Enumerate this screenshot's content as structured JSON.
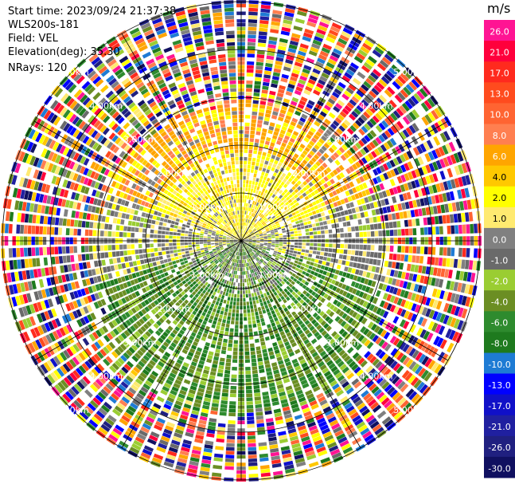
{
  "info": {
    "start_time": "Start time: 2023/09/24 21:37:38",
    "instrument": "WLS200s-181",
    "field": "Field: VEL",
    "elevation": "Elevation(deg): 35.30",
    "nrays": "NRays: 120"
  },
  "colorbar": {
    "unit": "m/s",
    "ticks": [
      "26.0",
      "21.0",
      "17.0",
      "13.0",
      "10.0",
      "8.0",
      "6.0",
      "4.0",
      "2.0",
      "1.0",
      "0.0",
      "-1.0",
      "-2.0",
      "-4.0",
      "-6.0",
      "-8.0",
      "-10.0",
      "-13.0",
      "-17.0",
      "-21.0",
      "-26.0",
      "-30.0"
    ],
    "colors": [
      "#ff1493",
      "#ff003c",
      "#ff2a1e",
      "#ff4b1e",
      "#ff6432",
      "#ff7f50",
      "#ffa500",
      "#ffc800",
      "#ffff00",
      "#ffea70",
      "#808080",
      "#6a6a6a",
      "#9acd32",
      "#6b8e23",
      "#2e8b2e",
      "#1e7a1e",
      "#1e7bd4",
      "#0000ff",
      "#1010c8",
      "#2020a0",
      "#202080",
      "#101060"
    ]
  },
  "chart_data": {
    "type": "polar_ppi",
    "field": "VEL",
    "unit": "m/s",
    "nrays": 120,
    "elevation_deg": 35.3,
    "range_ring_labels_km": [
      "1.00km",
      "2.00km",
      "3.00km",
      "4.00km",
      "5.00km"
    ],
    "range_rings_km": [
      1,
      2,
      3,
      4,
      5
    ],
    "spoke_angles_deg": [
      0,
      30,
      60,
      90,
      120,
      150,
      180,
      210,
      240,
      270,
      300,
      330
    ],
    "max_range_km": 5.0,
    "velocity_pattern": {
      "north_sector": "positive (2.0 to 8.0 m/s, yellow/orange)",
      "east_west_center": "near zero (-1.0 to 1.0 m/s, grey)",
      "south_sector": "negative (-2.0 to -8.0 m/s, green)",
      "outer_ranges": "noisy, full color scale"
    },
    "clean_radius_km": {
      "north": 3.0,
      "south": 3.8,
      "east": 3.2,
      "west": 3.2
    }
  }
}
